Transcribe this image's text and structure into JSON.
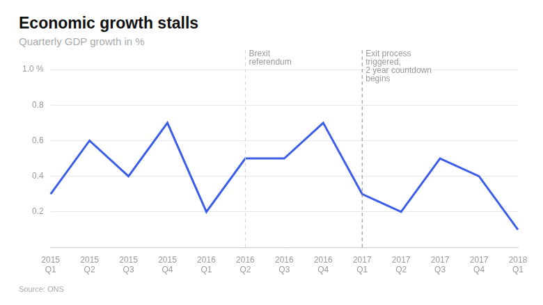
{
  "chart_data": {
    "type": "line",
    "title": "Economic growth stalls",
    "subtitle": "Quarterly GDP growth in %",
    "source": "Source: ONS",
    "categories": [
      "2015 Q1",
      "2015 Q2",
      "2015 Q3",
      "2015 Q4",
      "2016 Q1",
      "2016 Q2",
      "2016 Q3",
      "2016 Q4",
      "2017 Q1",
      "2017 Q2",
      "2017 Q3",
      "2017 Q4",
      "2018 Q1"
    ],
    "values": [
      0.3,
      0.6,
      0.4,
      0.7,
      0.2,
      0.5,
      0.5,
      0.7,
      0.3,
      0.2,
      0.5,
      0.4,
      0.1
    ],
    "color": "#3b5de7",
    "ylim": [
      0,
      1.0
    ],
    "yticks": [
      0.2,
      0.4,
      0.6,
      0.8,
      {
        "value": 1.0,
        "label": "1.0 %"
      }
    ],
    "grid": true,
    "annotations": [
      {
        "x": "2016 Q2",
        "text": [
          "Brexit",
          "referendum"
        ]
      },
      {
        "x": "2017 Q1",
        "text": [
          "Exit process",
          "triggered,",
          "2 year countdown",
          "begins"
        ]
      }
    ]
  }
}
